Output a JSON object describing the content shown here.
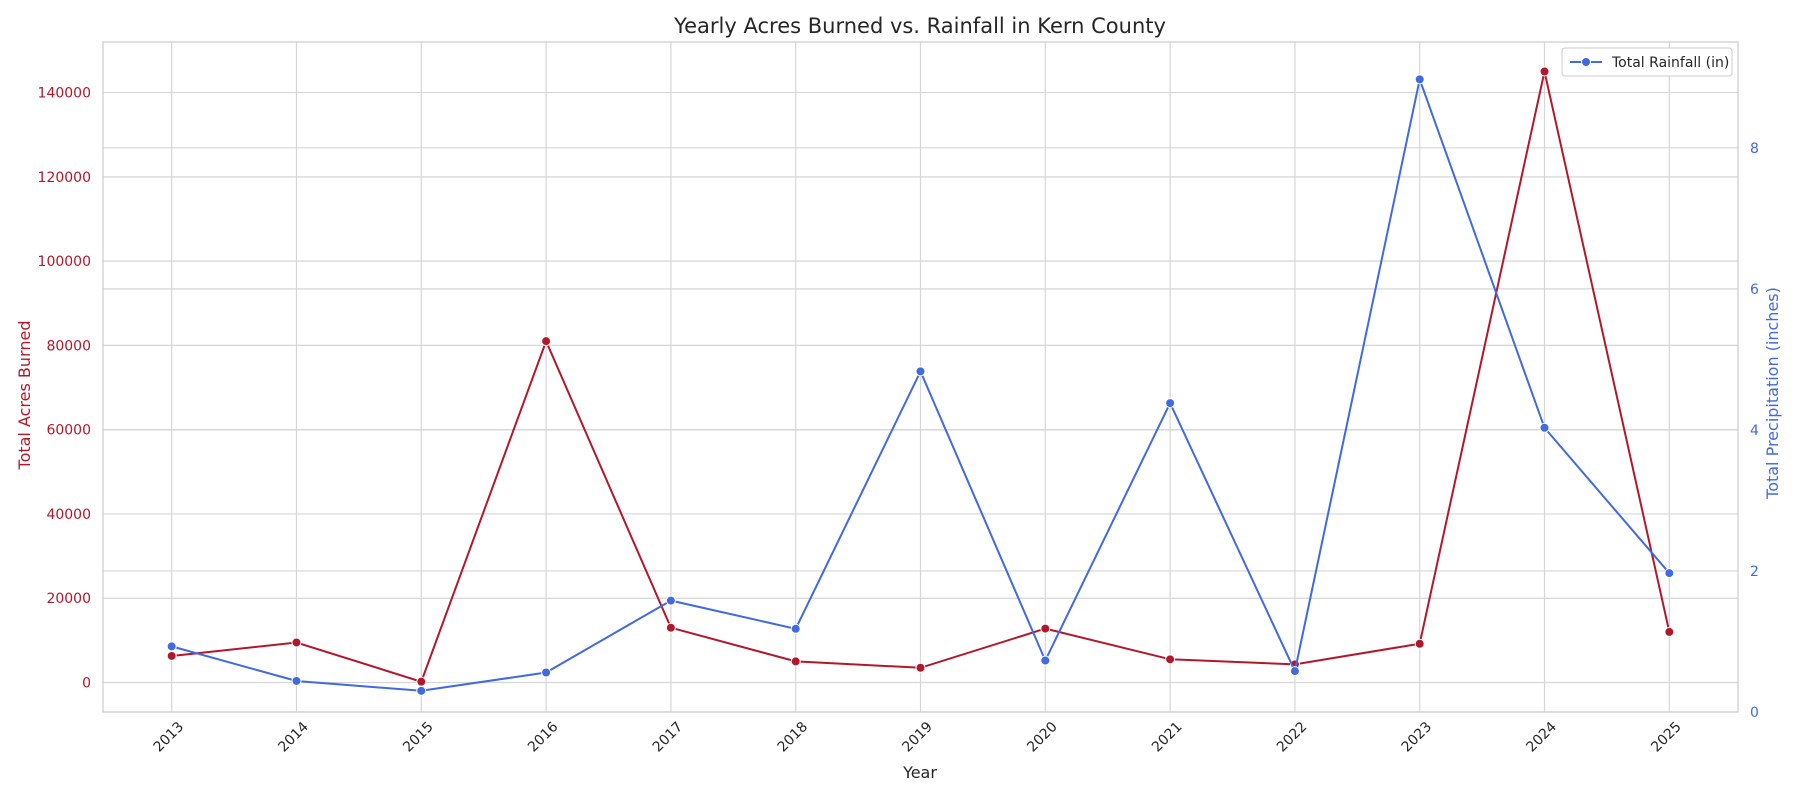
{
  "chart_data": {
    "type": "line",
    "title": "Yearly Acres Burned vs. Rainfall in Kern County",
    "xlabel": "Year",
    "ylabel_left": "Total Acres Burned",
    "ylabel_right": "Total Precipitation (inches)",
    "categories": [
      2013,
      2014,
      2015,
      2016,
      2017,
      2018,
      2019,
      2020,
      2021,
      2022,
      2023,
      2024,
      2025
    ],
    "series": [
      {
        "axis": "left",
        "color": "#b2182b",
        "values": [
          6300,
          9500,
          200,
          81000,
          13000,
          5000,
          3500,
          12800,
          5500,
          4300,
          9200,
          145000,
          12000
        ]
      },
      {
        "name": "Total Rainfall (in)",
        "axis": "right",
        "color": "#4169e1",
        "values": [
          0.93,
          0.44,
          0.3,
          0.56,
          1.58,
          1.18,
          4.83,
          0.73,
          4.38,
          0.58,
          8.97,
          4.03,
          1.97
        ]
      }
    ],
    "ylim_left": [
      -7000,
      152000
    ],
    "yticks_left": [
      0,
      20000,
      40000,
      60000,
      80000,
      100000,
      120000,
      140000
    ],
    "ylim_right": [
      0,
      9.5
    ],
    "yticks_right": [
      0,
      2,
      4,
      6,
      8
    ],
    "grid": true,
    "legend": "top-right",
    "label_color_left": "#b2182b",
    "label_color_right": "#4169e1"
  }
}
